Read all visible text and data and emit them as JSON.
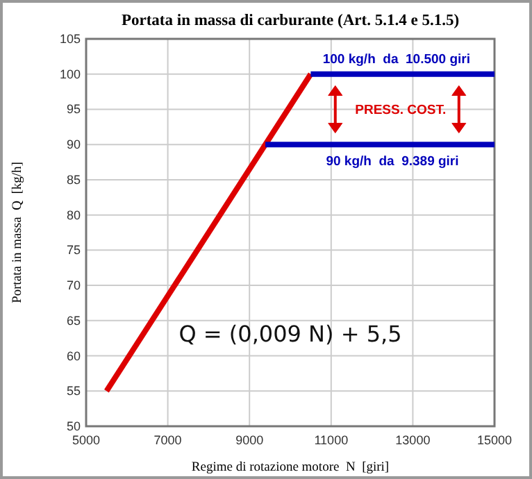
{
  "chart_data": {
    "type": "line",
    "title": "Portata in massa di carburante (Art. 5.1.4 e 5.1.5)",
    "xlabel": "Regime di rotazione motore  N  [giri]",
    "ylabel": "Portata in massa  Q  [kg/h]",
    "series": [
      {
        "color": "#dd0000",
        "x": [
          5500,
          10500
        ],
        "values": [
          55,
          100
        ]
      },
      {
        "color": "#0000bb",
        "x": [
          10500,
          15000
        ],
        "values": [
          100,
          100
        ]
      },
      {
        "color": "#0000bb",
        "x": [
          9389,
          15000
        ],
        "values": [
          90,
          90
        ]
      }
    ],
    "xlim": [
      5000,
      15000
    ],
    "xticks": [
      5000,
      7000,
      9000,
      11000,
      13000,
      15000
    ],
    "ylim": [
      50,
      105
    ],
    "yticks": [
      50,
      55,
      60,
      65,
      70,
      75,
      80,
      85,
      90,
      95,
      100,
      105
    ],
    "grid": true,
    "marker": "none",
    "line_style": "solid",
    "annotations": [
      {
        "text": "100 kg/h  da  10.500 giri",
        "x": 12600,
        "y": 100
      },
      {
        "text": "90 kg/h  da  9.389 giri",
        "x": 12500,
        "y": 90
      },
      "PRESS. COST.",
      "Q = (0,009 N) + 5,5"
    ]
  }
}
